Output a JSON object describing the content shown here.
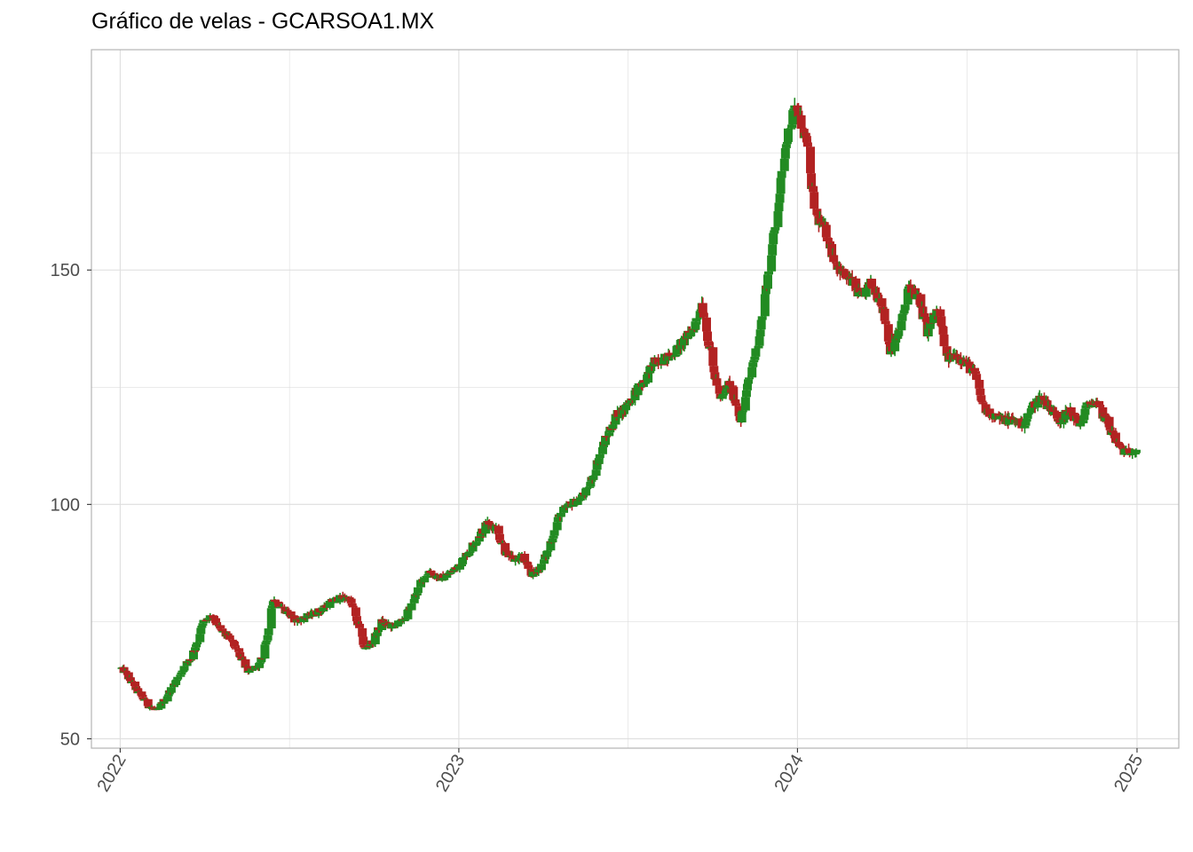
{
  "chart_data": {
    "type": "candlestick",
    "title": "Gráfico de velas - GCARSOA1.MX",
    "xlabel": "",
    "ylabel": "",
    "x_range": [
      "2021-12-01",
      "2025-02-15"
    ],
    "ylim": [
      48,
      197
    ],
    "y_ticks": [
      50,
      100,
      150
    ],
    "y_tick_labels": [
      "50",
      "100",
      "150"
    ],
    "x_ticks": [
      "2022-01-01",
      "2023-01-01",
      "2024-01-01",
      "2025-01-01"
    ],
    "x_tick_labels": [
      "2022",
      "2023",
      "2024",
      "2025"
    ],
    "grid": true,
    "colors": {
      "up": "#228B22",
      "down": "#B22222",
      "grid": "#dedede",
      "axis": "#b3b3b3"
    },
    "approx_close_path": [
      [
        "2022-01-03",
        65
      ],
      [
        "2022-01-10",
        63
      ],
      [
        "2022-01-20",
        60
      ],
      [
        "2022-02-01",
        57
      ],
      [
        "2022-02-10",
        56
      ],
      [
        "2022-02-20",
        59
      ],
      [
        "2022-03-01",
        62
      ],
      [
        "2022-03-10",
        65
      ],
      [
        "2022-03-20",
        68
      ],
      [
        "2022-04-01",
        75
      ],
      [
        "2022-04-10",
        76
      ],
      [
        "2022-04-20",
        73
      ],
      [
        "2022-05-01",
        71
      ],
      [
        "2022-05-10",
        68
      ],
      [
        "2022-05-20",
        64
      ],
      [
        "2022-06-01",
        66
      ],
      [
        "2022-06-10",
        73
      ],
      [
        "2022-06-15",
        80
      ],
      [
        "2022-06-25",
        78
      ],
      [
        "2022-07-10",
        75
      ],
      [
        "2022-07-20",
        76
      ],
      [
        "2022-08-01",
        77
      ],
      [
        "2022-08-15",
        79
      ],
      [
        "2022-08-25",
        80
      ],
      [
        "2022-09-05",
        80
      ],
      [
        "2022-09-15",
        74
      ],
      [
        "2022-09-22",
        69
      ],
      [
        "2022-10-01",
        71
      ],
      [
        "2022-10-10",
        75
      ],
      [
        "2022-10-20",
        74
      ],
      [
        "2022-11-01",
        75
      ],
      [
        "2022-11-10",
        78
      ],
      [
        "2022-11-20",
        83
      ],
      [
        "2022-12-01",
        86
      ],
      [
        "2022-12-10",
        84
      ],
      [
        "2022-12-20",
        85
      ],
      [
        "2023-01-01",
        87
      ],
      [
        "2023-01-15",
        91
      ],
      [
        "2023-02-01",
        96
      ],
      [
        "2023-02-10",
        95
      ],
      [
        "2023-02-20",
        90
      ],
      [
        "2023-03-01",
        88
      ],
      [
        "2023-03-10",
        89
      ],
      [
        "2023-03-20",
        85
      ],
      [
        "2023-04-01",
        87
      ],
      [
        "2023-04-10",
        92
      ],
      [
        "2023-04-20",
        98
      ],
      [
        "2023-05-01",
        100
      ],
      [
        "2023-05-10",
        101
      ],
      [
        "2023-05-20",
        103
      ],
      [
        "2023-06-01",
        110
      ],
      [
        "2023-06-10",
        115
      ],
      [
        "2023-06-20",
        119
      ],
      [
        "2023-07-01",
        121
      ],
      [
        "2023-07-10",
        124
      ],
      [
        "2023-07-20",
        126
      ],
      [
        "2023-08-01",
        131
      ],
      [
        "2023-08-10",
        131
      ],
      [
        "2023-08-20",
        132
      ],
      [
        "2023-09-01",
        135
      ],
      [
        "2023-09-10",
        137
      ],
      [
        "2023-09-20",
        143
      ],
      [
        "2023-10-01",
        130
      ],
      [
        "2023-10-10",
        122
      ],
      [
        "2023-10-20",
        126
      ],
      [
        "2023-11-01",
        118
      ],
      [
        "2023-11-10",
        127
      ],
      [
        "2023-11-20",
        135
      ],
      [
        "2023-12-01",
        150
      ],
      [
        "2023-12-10",
        162
      ],
      [
        "2023-12-20",
        178
      ],
      [
        "2023-12-30",
        185
      ],
      [
        "2024-01-10",
        178
      ],
      [
        "2024-01-20",
        162
      ],
      [
        "2024-02-01",
        158
      ],
      [
        "2024-02-10",
        152
      ],
      [
        "2024-02-20",
        149
      ],
      [
        "2024-03-01",
        147
      ],
      [
        "2024-03-10",
        144
      ],
      [
        "2024-03-20",
        147
      ],
      [
        "2024-04-01",
        143
      ],
      [
        "2024-04-10",
        133
      ],
      [
        "2024-04-20",
        137
      ],
      [
        "2024-05-01",
        147
      ],
      [
        "2024-05-10",
        144
      ],
      [
        "2024-05-20",
        137
      ],
      [
        "2024-06-01",
        142
      ],
      [
        "2024-06-10",
        131
      ],
      [
        "2024-06-20",
        132
      ],
      [
        "2024-07-01",
        130
      ],
      [
        "2024-07-10",
        128
      ],
      [
        "2024-07-20",
        120
      ],
      [
        "2024-08-01",
        119
      ],
      [
        "2024-08-10",
        118
      ],
      [
        "2024-08-20",
        118
      ],
      [
        "2024-09-01",
        117
      ],
      [
        "2024-09-10",
        121
      ],
      [
        "2024-09-20",
        123
      ],
      [
        "2024-10-01",
        120
      ],
      [
        "2024-10-10",
        118
      ],
      [
        "2024-10-20",
        120
      ],
      [
        "2024-11-01",
        117
      ],
      [
        "2024-11-10",
        122
      ],
      [
        "2024-11-20",
        121
      ],
      [
        "2024-12-01",
        117
      ],
      [
        "2024-12-10",
        113
      ],
      [
        "2024-12-20",
        111
      ],
      [
        "2024-12-31",
        112
      ]
    ]
  }
}
